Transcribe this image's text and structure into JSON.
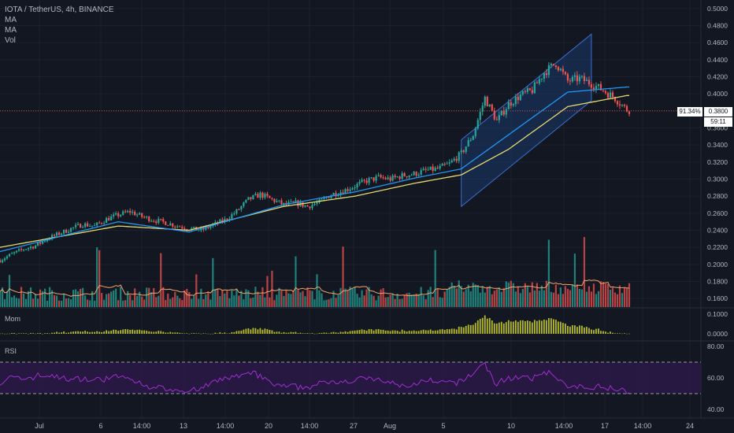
{
  "header": {
    "symbol": "IOTA / TetherUS, 4h, BINANCE",
    "indicators": [
      "MA",
      "MA",
      "Vol"
    ]
  },
  "panes": {
    "momentum_label": "Mom",
    "rsi_label": "RSI"
  },
  "price_tag": {
    "change": "91.34%",
    "price": "0.3800",
    "countdown": "59:11"
  },
  "colors": {
    "background": "#131722",
    "grid": "#1c2030",
    "up": "#26a69a",
    "down": "#ef5350",
    "ma_fast": "#2196f3",
    "ma_slow": "#e4d96f",
    "vol_ma": "#f2a36a",
    "rsi": "#a02ed1",
    "rsi_band": "#2a1845",
    "channel": "#1f4b8e",
    "mom": "#b5ba2a",
    "axis_text": "#b2b5be"
  },
  "chart_data": [
    {
      "type": "candlestick",
      "title": "IOTA / TetherUS, 4h, BINANCE",
      "y_axis_ticks": [
        "0.5000",
        "0.4800",
        "0.4600",
        "0.4400",
        "0.4200",
        "0.4000",
        "0.3800",
        "0.3600",
        "0.3400",
        "0.3200",
        "0.3000",
        "0.2800",
        "0.2600",
        "0.2400",
        "0.2200",
        "0.2000",
        "0.1800",
        "0.1600"
      ],
      "ylim": [
        0.15,
        0.51
      ],
      "x_axis_ticks": [
        "Jul",
        "6",
        "14:00",
        "13",
        "14:00",
        "20",
        "14:00",
        "27",
        "Aug",
        "5",
        "10",
        "14:00",
        "17",
        "14:00",
        "24"
      ],
      "close_path": [
        [
          0,
          0.205
        ],
        [
          5,
          0.212
        ],
        [
          10,
          0.218
        ],
        [
          15,
          0.222
        ],
        [
          20,
          0.23
        ],
        [
          25,
          0.236
        ],
        [
          30,
          0.242
        ],
        [
          35,
          0.247
        ],
        [
          40,
          0.245
        ],
        [
          45,
          0.253
        ],
        [
          50,
          0.258
        ],
        [
          55,
          0.262
        ],
        [
          60,
          0.256
        ],
        [
          65,
          0.252
        ],
        [
          70,
          0.249
        ],
        [
          75,
          0.245
        ],
        [
          80,
          0.242
        ],
        [
          85,
          0.24
        ],
        [
          90,
          0.246
        ],
        [
          95,
          0.252
        ],
        [
          100,
          0.262
        ],
        [
          105,
          0.276
        ],
        [
          110,
          0.282
        ],
        [
          115,
          0.276
        ],
        [
          120,
          0.27
        ],
        [
          125,
          0.272
        ],
        [
          130,
          0.268
        ],
        [
          135,
          0.273
        ],
        [
          140,
          0.282
        ],
        [
          145,
          0.286
        ],
        [
          150,
          0.292
        ],
        [
          155,
          0.298
        ],
        [
          160,
          0.302
        ],
        [
          165,
          0.3
        ],
        [
          170,
          0.304
        ],
        [
          175,
          0.306
        ],
        [
          180,
          0.31
        ],
        [
          185,
          0.312
        ],
        [
          190,
          0.318
        ],
        [
          195,
          0.33
        ],
        [
          200,
          0.352
        ],
        [
          205,
          0.395
        ],
        [
          210,
          0.368
        ],
        [
          215,
          0.388
        ],
        [
          220,
          0.398
        ],
        [
          225,
          0.404
        ],
        [
          230,
          0.425
        ],
        [
          235,
          0.436
        ],
        [
          240,
          0.415
        ],
        [
          245,
          0.418
        ],
        [
          250,
          0.412
        ],
        [
          255,
          0.404
        ],
        [
          260,
          0.395
        ],
        [
          265,
          0.381
        ]
      ],
      "ma_fast": [
        [
          0,
          0.215
        ],
        [
          50,
          0.25
        ],
        [
          80,
          0.238
        ],
        [
          120,
          0.27
        ],
        [
          150,
          0.285
        ],
        [
          175,
          0.301
        ],
        [
          195,
          0.312
        ],
        [
          215,
          0.352
        ],
        [
          240,
          0.402
        ],
        [
          265,
          0.408
        ]
      ],
      "ma_slow": [
        [
          0,
          0.22
        ],
        [
          50,
          0.245
        ],
        [
          80,
          0.24
        ],
        [
          120,
          0.268
        ],
        [
          150,
          0.28
        ],
        [
          175,
          0.295
        ],
        [
          195,
          0.305
        ],
        [
          215,
          0.335
        ],
        [
          240,
          0.385
        ],
        [
          265,
          0.398
        ]
      ],
      "channel": {
        "lower_start": [
          195,
          0.268
        ],
        "upper_start": [
          195,
          0.346
        ],
        "lower_end": [
          250,
          0.392
        ],
        "upper_end": [
          250,
          0.47
        ]
      },
      "last_price": 0.38,
      "change_label": "91.34%"
    },
    {
      "type": "line",
      "title": "RSI",
      "y_axis_ticks": [
        "80.00",
        "60.00",
        "40.00"
      ],
      "ylim": [
        35,
        82
      ],
      "bands": [
        70,
        50
      ]
    },
    {
      "type": "bar",
      "title": "Mom",
      "y_axis_ticks": [
        "0.1000",
        "0.0000"
      ],
      "ylim": [
        -0.02,
        0.12
      ]
    }
  ]
}
